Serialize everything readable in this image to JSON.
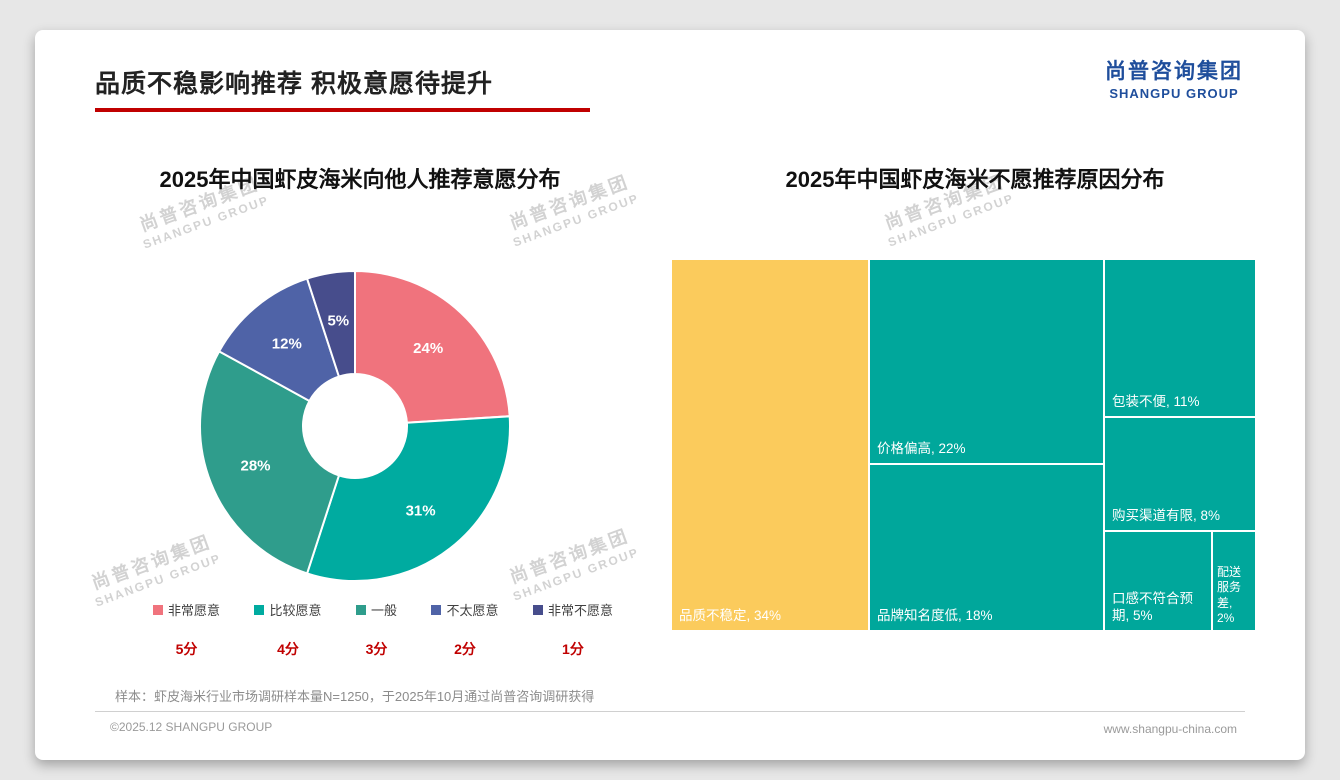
{
  "page": {
    "title": "品质不稳影响推荐 积极意愿待提升",
    "logo": {
      "cn": "尚普咨询集团",
      "en": "SHANGPU GROUP"
    },
    "watermark": {
      "cn": "尚普咨询集团",
      "en": "SHANGPU GROUP"
    },
    "footnote": "样本：虾皮海米行业市场调研样本量N=1250，于2025年10月通过尚普咨询调研获得",
    "footer_left": "©2025.12 SHANGPU GROUP",
    "footer_right": "www.shangpu-china.com",
    "accent_color": "#C00000",
    "logo_color": "#1F4E9C"
  },
  "chart_data": [
    {
      "type": "pie",
      "subtype": "donut",
      "title": "2025年中国虾皮海米向他人推荐意愿分布",
      "categories": [
        "非常愿意",
        "比较愿意",
        "一般",
        "不太愿意",
        "非常不愿意"
      ],
      "values": [
        24,
        31,
        28,
        12,
        5
      ],
      "score_labels": [
        "5分",
        "4分",
        "3分",
        "2分",
        "1分"
      ],
      "colors": [
        "#F0737D",
        "#00ABA0",
        "#2F9D8C",
        "#4F63A7",
        "#474D8C"
      ],
      "unit": "%",
      "legend_position": "bottom",
      "score_color": "#C00000"
    },
    {
      "type": "treemap",
      "title": "2025年中国虾皮海米不愿推荐原因分布",
      "unit": "%",
      "items": [
        {
          "label": "品质不稳定",
          "value": 34,
          "color": "#FBCB5C"
        },
        {
          "label": "价格偏高",
          "value": 22,
          "color": "#00A79B"
        },
        {
          "label": "品牌知名度低",
          "value": 18,
          "color": "#00A79B"
        },
        {
          "label": "包装不便",
          "value": 11,
          "color": "#00A79B"
        },
        {
          "label": "购买渠道有限",
          "value": 8,
          "color": "#00A79B"
        },
        {
          "label": "口感不符合预期",
          "value": 5,
          "color": "#00A79B"
        },
        {
          "label": "配送服务差",
          "value": 2,
          "color": "#00A79B"
        }
      ]
    }
  ]
}
